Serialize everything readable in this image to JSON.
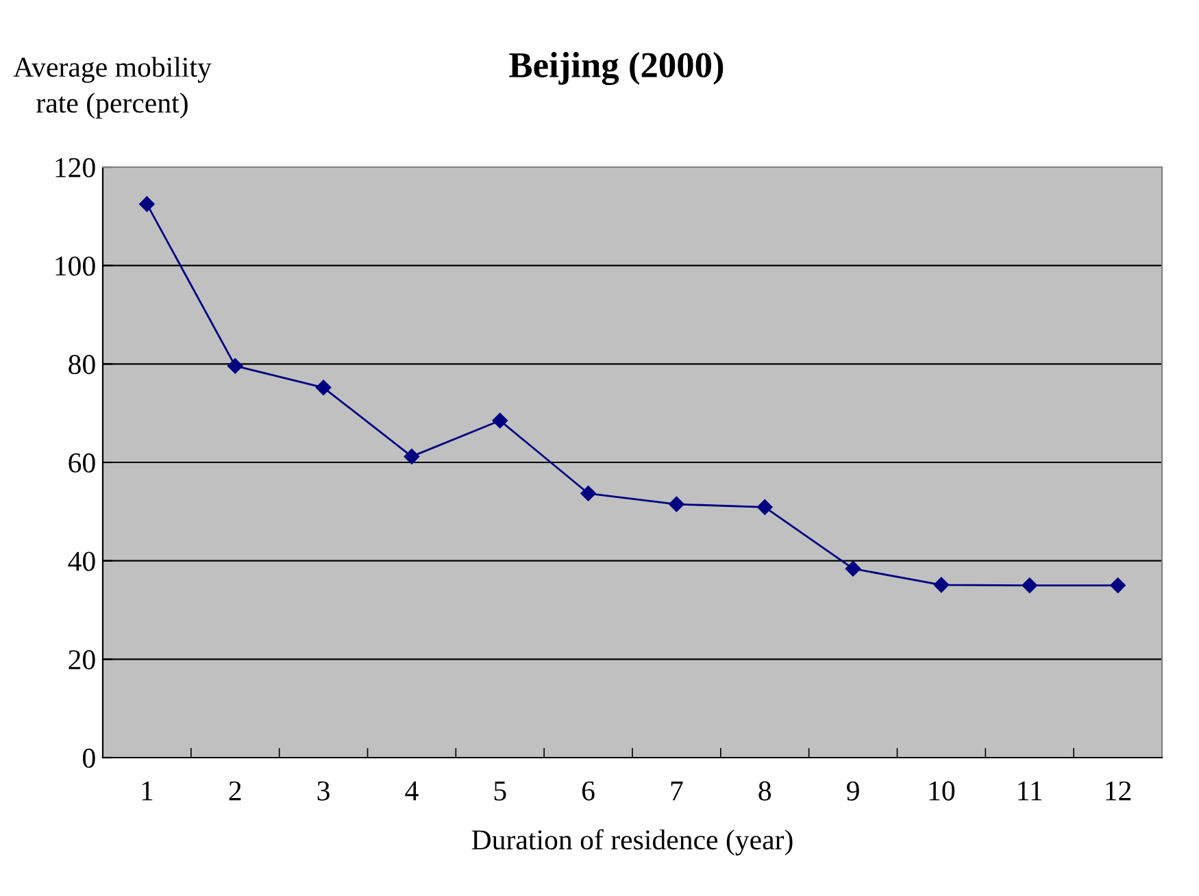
{
  "chart_data": {
    "type": "line",
    "title": "Beijing (2000)",
    "ylabel": "Average mobility\nrate (percent)",
    "xlabel": "Duration of residence (year)",
    "categories": [
      "1",
      "2",
      "3",
      "4",
      "5",
      "6",
      "7",
      "8",
      "9",
      "10",
      "11",
      "12"
    ],
    "series": [
      {
        "color": "#000080",
        "values": [
          112.5,
          79.6,
          75.2,
          61.2,
          68.5,
          53.7,
          51.5,
          50.9,
          38.4,
          35.1,
          35,
          35
        ]
      }
    ],
    "ylim": [
      0,
      120
    ],
    "yticks": [
      0,
      20,
      40,
      60,
      80,
      100,
      120
    ],
    "grid": "y",
    "marker": "diamond",
    "line_style": "solid",
    "legend": false
  }
}
